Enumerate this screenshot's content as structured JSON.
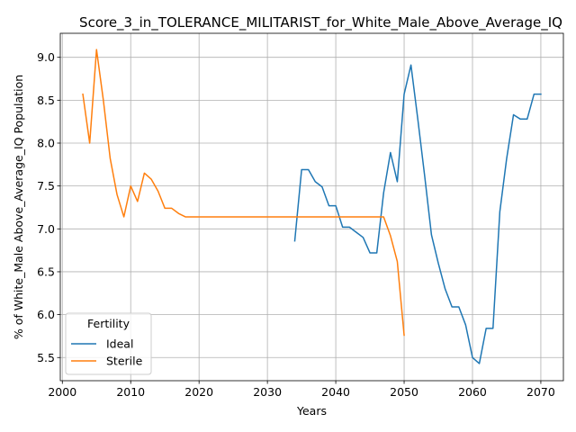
{
  "chart_data": {
    "type": "line",
    "title": "Score_3_in_TOLERANCE_MILITARIST_for_White_Male_Above_Average_IQ",
    "xlabel": "Years",
    "ylabel": "% of White_Male Above_Average_IQ Population",
    "xlim": [
      1999.7,
      2073.3
    ],
    "ylim": [
      5.23,
      9.28
    ],
    "xticks": [
      2000,
      2010,
      2020,
      2030,
      2040,
      2050,
      2060,
      2070
    ],
    "yticks": [
      5.5,
      6.0,
      6.5,
      7.0,
      7.5,
      8.0,
      8.5,
      9.0
    ],
    "xtick_labels": [
      "2000",
      "2010",
      "2020",
      "2030",
      "2040",
      "2050",
      "2060",
      "2070"
    ],
    "ytick_labels": [
      "5.5",
      "6.0",
      "6.5",
      "7.0",
      "7.5",
      "8.0",
      "8.5",
      "9.0"
    ],
    "grid": true,
    "legend": {
      "title": "Fertility",
      "position": "lower-left"
    },
    "series": [
      {
        "name": "Ideal",
        "color": "#1f77b4",
        "x": [
          2034,
          2035,
          2036,
          2037,
          2038,
          2039,
          2040,
          2041,
          2042,
          2043,
          2044,
          2045,
          2046,
          2047,
          2048,
          2049,
          2050,
          2051,
          2052,
          2053,
          2054,
          2055,
          2056,
          2057,
          2058,
          2059,
          2060,
          2061,
          2062,
          2063,
          2064,
          2065,
          2066,
          2067,
          2068,
          2069,
          2070
        ],
        "y": [
          6.86,
          7.69,
          7.69,
          7.55,
          7.49,
          7.27,
          7.27,
          7.02,
          7.02,
          6.96,
          6.9,
          6.72,
          6.72,
          7.42,
          7.89,
          7.55,
          8.57,
          8.91,
          8.28,
          7.62,
          6.93,
          6.6,
          6.3,
          6.09,
          6.09,
          5.88,
          5.5,
          5.43,
          5.84,
          5.84,
          7.2,
          7.82,
          8.33,
          8.28,
          8.28,
          8.57,
          8.57
        ]
      },
      {
        "name": "Sterile",
        "color": "#ff7f0e",
        "x": [
          2003,
          2004,
          2005,
          2006,
          2007,
          2008,
          2009,
          2010,
          2011,
          2012,
          2013,
          2014,
          2015,
          2016,
          2017,
          2018,
          2019,
          2020,
          2021,
          2022,
          2023,
          2024,
          2025,
          2026,
          2027,
          2028,
          2029,
          2030,
          2031,
          2032,
          2033,
          2034,
          2035,
          2036,
          2037,
          2038,
          2039,
          2040,
          2041,
          2042,
          2043,
          2044,
          2045,
          2046,
          2047,
          2048,
          2049,
          2050
        ],
        "y": [
          8.57,
          8.0,
          9.09,
          8.5,
          7.82,
          7.4,
          7.14,
          7.5,
          7.32,
          7.65,
          7.58,
          7.44,
          7.24,
          7.24,
          7.18,
          7.14,
          7.14,
          7.14,
          7.14,
          7.14,
          7.14,
          7.14,
          7.14,
          7.14,
          7.14,
          7.14,
          7.14,
          7.14,
          7.14,
          7.14,
          7.14,
          7.14,
          7.14,
          7.14,
          7.14,
          7.14,
          7.14,
          7.14,
          7.14,
          7.14,
          7.14,
          7.14,
          7.14,
          7.14,
          7.14,
          6.92,
          6.62,
          5.76
        ]
      }
    ]
  }
}
